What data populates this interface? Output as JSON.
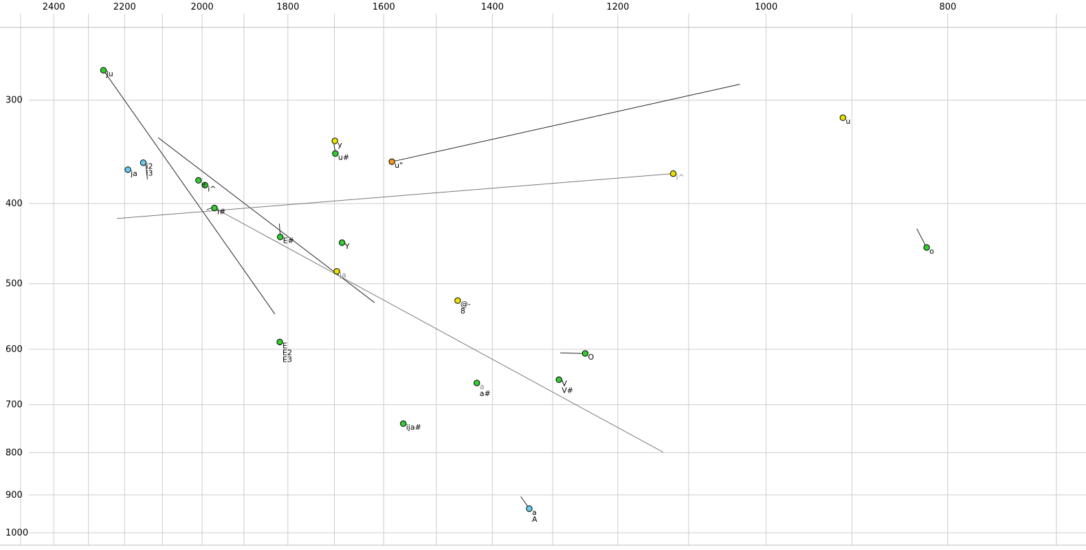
{
  "chart_data": {
    "type": "scatter",
    "title": "",
    "xlabel": "",
    "ylabel": "",
    "legend": "none",
    "grid": "on",
    "axes": {
      "x": {
        "position": "top",
        "scale": "log",
        "direction": "decreasing-rightward",
        "range": [
          2564,
          675
        ],
        "ticks": [
          {
            "label": "2400",
            "value": 2400
          },
          {
            "label": "2200",
            "value": 2200
          },
          {
            "label": "2000",
            "value": 2000
          },
          {
            "label": "1800",
            "value": 1800
          },
          {
            "label": "1600",
            "value": 1600
          },
          {
            "label": "1400",
            "value": 1400
          },
          {
            "label": "1200",
            "value": 1200
          },
          {
            "label": "1000",
            "value": 1000
          },
          {
            "label": "800",
            "value": 800
          }
        ],
        "grid_values": [
          2500,
          2400,
          2300,
          2200,
          2100,
          2000,
          1900,
          1800,
          1700,
          1600,
          1500,
          1400,
          1300,
          1200,
          1100,
          1000,
          900,
          800,
          700
        ]
      },
      "y": {
        "position": "left",
        "scale": "log",
        "direction": "increasing-downward",
        "range": [
          227,
          1049
        ],
        "ticks": [
          {
            "label": "300",
            "value": 300
          },
          {
            "label": "400",
            "value": 400
          },
          {
            "label": "500",
            "value": 500
          },
          {
            "label": "600",
            "value": 600
          },
          {
            "label": "700",
            "value": 700
          },
          {
            "label": "800",
            "value": 800
          },
          {
            "label": "900",
            "value": 900
          },
          {
            "label": "1000",
            "value": 1000
          }
        ],
        "grid_values": [
          300,
          400,
          500,
          600,
          700,
          800,
          900,
          1000
        ],
        "border_values": [
          245,
          1035
        ]
      }
    },
    "colors": {
      "green": "#33cc33",
      "yellow": "#e8e100",
      "cyan": "#66ccee",
      "orange": "#ee9922",
      "grid": "#cccccc",
      "border": "#bbbbbb",
      "line_dark": "#222222",
      "line_gray": "#777777",
      "label_black": "#000000",
      "label_gray": "#888888"
    },
    "points": [
      {
        "id": "Ju",
        "f2": 2258,
        "f1": 276,
        "color": "green",
        "labels": [
          {
            "text": "Ju"
          }
        ]
      },
      {
        "id": "ja-front",
        "f2": 2191,
        "f1": 364,
        "color": "cyan",
        "labels": [
          {
            "text": "ja"
          }
        ]
      },
      {
        "id": "i2",
        "f2": 2150,
        "f1": 357,
        "color": "cyan",
        "labels": [
          {
            "text": "i2"
          },
          {
            "text": "i3"
          }
        ]
      },
      {
        "id": "e",
        "f2": 2009,
        "f1": 375,
        "color": "green",
        "labels": [
          {
            "text": "e"
          }
        ]
      },
      {
        "id": "i-hat-front",
        "f2": 1993,
        "f1": 380,
        "color": "green",
        "labels": [
          {
            "text": "i^"
          }
        ]
      },
      {
        "id": "i-sharp",
        "f2": 1970,
        "f1": 405,
        "color": "green",
        "labels": [
          {
            "text": "i#"
          }
        ]
      },
      {
        "id": "E-sharp",
        "f2": 1817,
        "f1": 439,
        "color": "green",
        "labels": [
          {
            "text": "E#"
          }
        ]
      },
      {
        "id": "y",
        "f2": 1699,
        "f1": 336,
        "color": "yellow",
        "labels": [
          {
            "text": "y"
          }
        ]
      },
      {
        "id": "u-sharp",
        "f2": 1698,
        "f1": 348,
        "color": "green",
        "labels": [
          {
            "text": "u#"
          }
        ]
      },
      {
        "id": "u-quote",
        "f2": 1584,
        "f1": 356,
        "color": "orange",
        "labels": [
          {
            "text": "u\""
          }
        ]
      },
      {
        "id": "Y",
        "f2": 1684,
        "f1": 446,
        "color": "green",
        "labels": [
          {
            "text": "Y"
          }
        ]
      },
      {
        "id": "ja-mid",
        "f2": 1695,
        "f1": 483,
        "color": "yellow",
        "labels": [
          {
            "text": "ja",
            "gray": true
          }
        ]
      },
      {
        "id": "at-dash",
        "f2": 1461,
        "f1": 524,
        "color": "yellow",
        "labels": [
          {
            "text": "@-"
          },
          {
            "text": "8"
          }
        ]
      },
      {
        "id": "E",
        "f2": 1818,
        "f1": 588,
        "color": "green",
        "labels": [
          {
            "text": "E"
          },
          {
            "text": "E2"
          },
          {
            "text": "E3"
          }
        ]
      },
      {
        "id": "O",
        "f2": 1249,
        "f1": 607,
        "color": "green",
        "labels": [
          {
            "text": "O"
          }
        ]
      },
      {
        "id": "a-mid",
        "f2": 1427,
        "f1": 659,
        "color": "green",
        "labels": [
          {
            "text": "a",
            "gray": true
          },
          {
            "text": "a#"
          }
        ]
      },
      {
        "id": "V",
        "f2": 1290,
        "f1": 653,
        "color": "green",
        "labels": [
          {
            "text": "V"
          },
          {
            "text": "V#"
          }
        ]
      },
      {
        "id": "ija-sharp",
        "f2": 1562,
        "f1": 738,
        "color": "green",
        "labels": [
          {
            "text": "ija#"
          }
        ]
      },
      {
        "id": "a-low",
        "f2": 1338,
        "f1": 935,
        "color": "cyan",
        "labels": [
          {
            "text": "a"
          },
          {
            "text": "A"
          }
        ]
      },
      {
        "id": "u",
        "f2": 910,
        "f1": 315,
        "color": "yellow",
        "labels": [
          {
            "text": "u"
          }
        ]
      },
      {
        "id": "i-hat-back",
        "f2": 1121,
        "f1": 368,
        "color": "yellow",
        "labels": [
          {
            "text": "i^",
            "gray": true
          }
        ]
      },
      {
        "id": "o",
        "f2": 821,
        "f1": 452,
        "color": "green",
        "labels": [
          {
            "text": "o"
          }
        ]
      }
    ],
    "lines": [
      {
        "id": "ju-diagonal",
        "from": [
          2258,
          276
        ],
        "to": [
          1829,
          544
        ],
        "color": "#222222"
      },
      {
        "id": "upper-diagonal",
        "from": [
          2111,
          333
        ],
        "to": [
          1618,
          527
        ],
        "color": "#222222"
      },
      {
        "id": "long-horizontal",
        "from": [
          2221,
          417
        ],
        "to": [
          1121,
          368
        ],
        "color": "#777777"
      },
      {
        "id": "u-quote-diagonal",
        "from": [
          1584,
          356
        ],
        "to": [
          1033,
          287
        ],
        "color": "#222222"
      },
      {
        "id": "long-gray-diagonal",
        "from": [
          1970,
          405
        ],
        "to": [
          1135,
          799
        ],
        "color": "#777777"
      },
      {
        "id": "O-tick",
        "from": [
          1288,
          606
        ],
        "to": [
          1253,
          607
        ],
        "color": "#222222"
      },
      {
        "id": "o-tick",
        "from": [
          831,
          429
        ],
        "to": [
          822,
          450
        ],
        "color": "#222222"
      },
      {
        "id": "a-low-tick",
        "from": [
          1352,
          904
        ],
        "to": [
          1340,
          930
        ],
        "color": "#222222"
      },
      {
        "id": "i2-tick",
        "from": [
          2144,
          357
        ],
        "to": [
          2139,
          374
        ],
        "color": "#222222"
      },
      {
        "id": "E-sharp-tick",
        "from": [
          1819,
          423
        ],
        "to": [
          1817,
          438
        ],
        "color": "#222222"
      },
      {
        "id": "y-tick",
        "from": [
          1701,
          339
        ],
        "to": [
          1698,
          347
        ],
        "color": "#222222"
      },
      {
        "id": "i-sharp-tick",
        "from": [
          1989,
          407
        ],
        "to": [
          1972,
          404
        ],
        "color": "#222222"
      }
    ]
  }
}
